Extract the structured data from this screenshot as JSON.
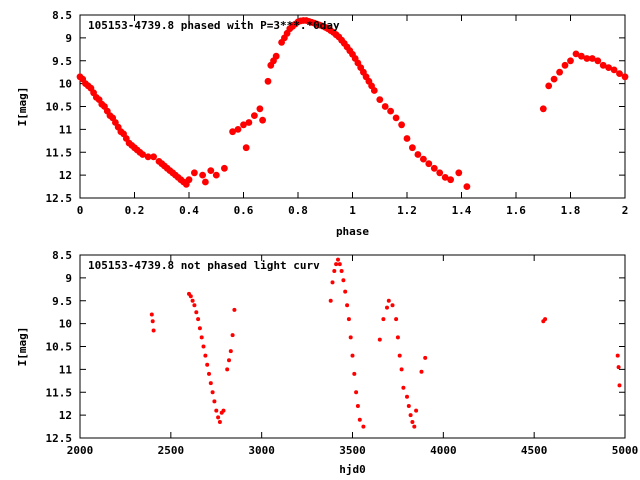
{
  "chart_data": [
    {
      "type": "scatter",
      "title": "105153-4739.8 phased with P=3***.*0day",
      "xlabel": "phase",
      "ylabel": "I[mag]",
      "xlim": [
        0,
        2
      ],
      "ylim": [
        12.5,
        8.5
      ],
      "y_inverted": true,
      "xticks": [
        "0",
        "0.2",
        "0.4",
        "0.6",
        "0.8",
        "1",
        "1.2",
        "1.4",
        "1.6",
        "1.8",
        "2"
      ],
      "yticks": [
        "8.5",
        "9",
        "9.5",
        "10",
        "10.5",
        "11",
        "11.5",
        "12",
        "12.5"
      ],
      "marker": "filled-circle",
      "color": "#ff0000",
      "series": [
        {
          "points": [
            [
              0.0,
              9.85
            ],
            [
              0.01,
              9.9
            ],
            [
              0.02,
              10.0
            ],
            [
              0.03,
              10.05
            ],
            [
              0.04,
              10.1
            ],
            [
              0.05,
              10.2
            ],
            [
              0.06,
              10.3
            ],
            [
              0.07,
              10.35
            ],
            [
              0.08,
              10.45
            ],
            [
              0.09,
              10.5
            ],
            [
              0.1,
              10.6
            ],
            [
              0.11,
              10.7
            ],
            [
              0.12,
              10.75
            ],
            [
              0.13,
              10.85
            ],
            [
              0.14,
              10.95
            ],
            [
              0.15,
              11.05
            ],
            [
              0.16,
              11.1
            ],
            [
              0.17,
              11.2
            ],
            [
              0.18,
              11.3
            ],
            [
              0.19,
              11.35
            ],
            [
              0.2,
              11.4
            ],
            [
              0.21,
              11.45
            ],
            [
              0.22,
              11.5
            ],
            [
              0.23,
              11.55
            ],
            [
              0.25,
              11.6
            ],
            [
              0.27,
              11.6
            ],
            [
              0.29,
              11.7
            ],
            [
              0.3,
              11.75
            ],
            [
              0.31,
              11.8
            ],
            [
              0.32,
              11.85
            ],
            [
              0.33,
              11.9
            ],
            [
              0.34,
              11.95
            ],
            [
              0.35,
              12.0
            ],
            [
              0.36,
              12.05
            ],
            [
              0.37,
              12.1
            ],
            [
              0.38,
              12.15
            ],
            [
              0.39,
              12.2
            ],
            [
              0.4,
              12.1
            ],
            [
              0.42,
              11.95
            ],
            [
              0.45,
              12.0
            ],
            [
              0.46,
              12.15
            ],
            [
              0.48,
              11.9
            ],
            [
              0.5,
              12.0
            ],
            [
              0.53,
              11.85
            ],
            [
              0.56,
              11.05
            ],
            [
              0.58,
              11.0
            ],
            [
              0.6,
              10.9
            ],
            [
              0.61,
              11.4
            ],
            [
              0.62,
              10.85
            ],
            [
              0.64,
              10.7
            ],
            [
              0.66,
              10.55
            ],
            [
              0.67,
              10.8
            ],
            [
              0.69,
              9.95
            ],
            [
              0.7,
              9.6
            ],
            [
              0.71,
              9.5
            ],
            [
              0.72,
              9.4
            ],
            [
              0.74,
              9.1
            ],
            [
              0.75,
              9.0
            ],
            [
              0.76,
              8.9
            ],
            [
              0.77,
              8.8
            ],
            [
              0.78,
              8.75
            ],
            [
              0.79,
              8.7
            ],
            [
              0.8,
              8.65
            ],
            [
              0.81,
              8.63
            ],
            [
              0.82,
              8.62
            ],
            [
              0.83,
              8.62
            ],
            [
              0.84,
              8.64
            ],
            [
              0.85,
              8.66
            ],
            [
              0.86,
              8.68
            ],
            [
              0.87,
              8.7
            ],
            [
              0.88,
              8.72
            ],
            [
              0.89,
              8.74
            ],
            [
              0.9,
              8.77
            ],
            [
              0.91,
              8.8
            ],
            [
              0.92,
              8.84
            ],
            [
              0.93,
              8.88
            ],
            [
              0.94,
              8.93
            ],
            [
              0.95,
              8.98
            ],
            [
              0.96,
              9.05
            ],
            [
              0.97,
              9.12
            ],
            [
              0.98,
              9.2
            ],
            [
              0.99,
              9.28
            ],
            [
              1.0,
              9.36
            ],
            [
              1.01,
              9.45
            ],
            [
              1.02,
              9.55
            ],
            [
              1.03,
              9.65
            ],
            [
              1.04,
              9.75
            ],
            [
              1.05,
              9.85
            ],
            [
              1.06,
              9.95
            ],
            [
              1.07,
              10.05
            ],
            [
              1.08,
              10.15
            ],
            [
              1.1,
              10.35
            ],
            [
              1.12,
              10.5
            ],
            [
              1.14,
              10.6
            ],
            [
              1.16,
              10.75
            ],
            [
              1.18,
              10.9
            ],
            [
              1.2,
              11.2
            ],
            [
              1.22,
              11.4
            ],
            [
              1.24,
              11.55
            ],
            [
              1.26,
              11.65
            ],
            [
              1.28,
              11.75
            ],
            [
              1.3,
              11.85
            ],
            [
              1.32,
              11.95
            ],
            [
              1.34,
              12.05
            ],
            [
              1.36,
              12.1
            ],
            [
              1.39,
              11.95
            ],
            [
              1.42,
              12.25
            ],
            [
              1.7,
              10.55
            ],
            [
              1.72,
              10.05
            ],
            [
              1.74,
              9.9
            ],
            [
              1.76,
              9.75
            ],
            [
              1.78,
              9.6
            ],
            [
              1.8,
              9.5
            ],
            [
              1.82,
              9.35
            ],
            [
              1.84,
              9.4
            ],
            [
              1.86,
              9.45
            ],
            [
              1.88,
              9.45
            ],
            [
              1.9,
              9.5
            ],
            [
              1.92,
              9.6
            ],
            [
              1.94,
              9.65
            ],
            [
              1.96,
              9.7
            ],
            [
              1.98,
              9.78
            ],
            [
              2.0,
              9.85
            ]
          ]
        }
      ]
    },
    {
      "type": "scatter",
      "title": "105153-4739.8 not phased light curv",
      "xlabel": "hjd0",
      "ylabel": "I[mag]",
      "xlim": [
        2000,
        5000
      ],
      "ylim": [
        12.5,
        8.5
      ],
      "y_inverted": true,
      "xticks": [
        "2000",
        "2500",
        "3000",
        "3500",
        "4000",
        "4500",
        "5000"
      ],
      "yticks": [
        "8.5",
        "9",
        "9.5",
        "10",
        "10.5",
        "11",
        "11.5",
        "12",
        "12.5"
      ],
      "marker": "dot",
      "color": "#ff0000",
      "series": [
        {
          "points": [
            [
              2395,
              9.8
            ],
            [
              2400,
              9.95
            ],
            [
              2405,
              10.15
            ],
            [
              2600,
              9.35
            ],
            [
              2610,
              9.4
            ],
            [
              2620,
              9.5
            ],
            [
              2630,
              9.6
            ],
            [
              2640,
              9.75
            ],
            [
              2650,
              9.9
            ],
            [
              2660,
              10.1
            ],
            [
              2670,
              10.3
            ],
            [
              2680,
              10.5
            ],
            [
              2690,
              10.7
            ],
            [
              2700,
              10.9
            ],
            [
              2710,
              11.1
            ],
            [
              2720,
              11.3
            ],
            [
              2730,
              11.5
            ],
            [
              2740,
              11.7
            ],
            [
              2750,
              11.9
            ],
            [
              2760,
              12.05
            ],
            [
              2770,
              12.15
            ],
            [
              2780,
              11.95
            ],
            [
              2790,
              11.9
            ],
            [
              2810,
              11.0
            ],
            [
              2820,
              10.8
            ],
            [
              2830,
              10.6
            ],
            [
              2840,
              10.25
            ],
            [
              2850,
              9.7
            ],
            [
              3380,
              9.5
            ],
            [
              3390,
              9.1
            ],
            [
              3400,
              8.85
            ],
            [
              3410,
              8.7
            ],
            [
              3420,
              8.6
            ],
            [
              3430,
              8.7
            ],
            [
              3440,
              8.85
            ],
            [
              3450,
              9.05
            ],
            [
              3460,
              9.3
            ],
            [
              3470,
              9.6
            ],
            [
              3480,
              9.9
            ],
            [
              3490,
              10.3
            ],
            [
              3500,
              10.7
            ],
            [
              3510,
              11.1
            ],
            [
              3520,
              11.5
            ],
            [
              3530,
              11.8
            ],
            [
              3540,
              12.1
            ],
            [
              3560,
              12.25
            ],
            [
              3650,
              10.35
            ],
            [
              3670,
              9.9
            ],
            [
              3690,
              9.65
            ],
            [
              3700,
              9.5
            ],
            [
              3720,
              9.6
            ],
            [
              3740,
              9.9
            ],
            [
              3750,
              10.3
            ],
            [
              3760,
              10.7
            ],
            [
              3770,
              11.0
            ],
            [
              3780,
              11.4
            ],
            [
              3800,
              11.6
            ],
            [
              3810,
              11.8
            ],
            [
              3820,
              12.0
            ],
            [
              3830,
              12.15
            ],
            [
              3840,
              12.25
            ],
            [
              3850,
              11.9
            ],
            [
              3880,
              11.05
            ],
            [
              3900,
              10.75
            ],
            [
              4550,
              9.95
            ],
            [
              4560,
              9.9
            ],
            [
              4960,
              10.7
            ],
            [
              4965,
              10.95
            ],
            [
              4970,
              11.35
            ]
          ]
        }
      ]
    }
  ]
}
